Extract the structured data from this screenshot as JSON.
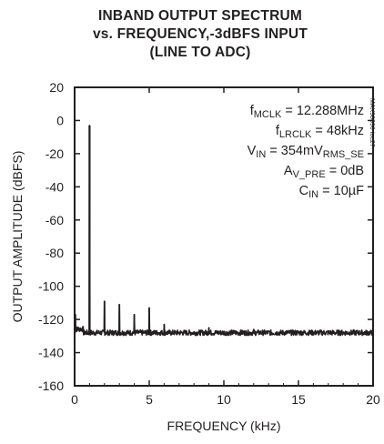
{
  "chart_data": {
    "type": "line",
    "title_lines": [
      "INBAND OUTPUT SPECTRUM",
      "vs. FREQUENCY,-3dBFS INPUT",
      "(LINE TO ADC)"
    ],
    "xlabel": "FREQUENCY (kHz)",
    "ylabel": "OUTPUT AMPLITUDE (dBFS)",
    "xlim": [
      0,
      20
    ],
    "ylim": [
      -160,
      20
    ],
    "xticks": [
      "0",
      "5",
      "10",
      "15",
      "20"
    ],
    "yticks": [
      "20",
      "0",
      "-20",
      "-40",
      "-60",
      "-80",
      "-100",
      "-120",
      "-140",
      "-160"
    ],
    "noise_floor_db": -128,
    "peaks": [
      {
        "x": 0.05,
        "y": -117
      },
      {
        "x": 1.0,
        "y": -3
      },
      {
        "x": 2.0,
        "y": -109
      },
      {
        "x": 3.0,
        "y": -111
      },
      {
        "x": 4.0,
        "y": -117
      },
      {
        "x": 5.0,
        "y": -113
      },
      {
        "x": 6.0,
        "y": -123
      },
      {
        "x": 9.0,
        "y": -125
      },
      {
        "x": 12.0,
        "y": -126
      }
    ],
    "annotations": [
      {
        "main": "f",
        "sub": "MCLK",
        "rest": " = 12.288MHz"
      },
      {
        "main": "f",
        "sub": "LRCLK",
        "rest": " = 48kHz"
      },
      {
        "main": "V",
        "sub": "IN",
        "rest": " = 354mV",
        "sub2": "RMS_SE"
      },
      {
        "main": "A",
        "sub": "V_PRE",
        "rest": " = 0dB"
      },
      {
        "main": "C",
        "sub": "IN",
        "rest": " = 10µF"
      }
    ],
    "figure_code": "MAX98090 toc27",
    "grid": false
  }
}
